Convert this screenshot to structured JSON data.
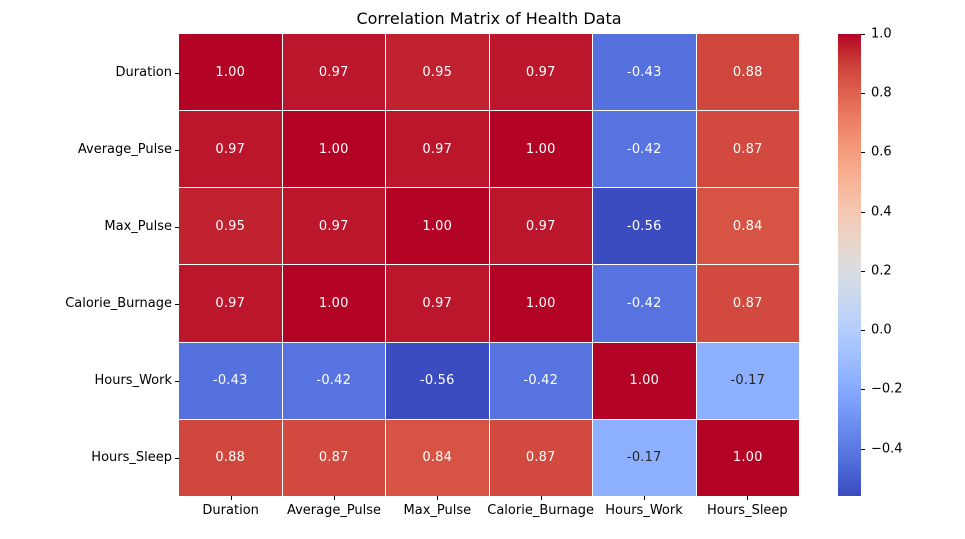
{
  "chart_data": {
    "type": "heatmap",
    "title": "Correlation Matrix of Health Data",
    "categories": [
      "Duration",
      "Average_Pulse",
      "Max_Pulse",
      "Calorie_Burnage",
      "Hours_Work",
      "Hours_Sleep"
    ],
    "matrix": [
      [
        1.0,
        0.97,
        0.95,
        0.97,
        -0.43,
        0.88
      ],
      [
        0.97,
        1.0,
        0.97,
        1.0,
        -0.42,
        0.87
      ],
      [
        0.95,
        0.97,
        1.0,
        0.97,
        -0.56,
        0.84
      ],
      [
        0.97,
        1.0,
        0.97,
        1.0,
        -0.42,
        0.87
      ],
      [
        -0.43,
        -0.42,
        -0.56,
        -0.42,
        1.0,
        -0.17
      ],
      [
        0.88,
        0.87,
        0.84,
        0.87,
        -0.17,
        1.0
      ]
    ],
    "value_decimals": 2,
    "colormap": "coolwarm",
    "vmin": -0.56,
    "vmax": 1.0,
    "colormap_stops": [
      "#3B4CC0",
      "#4D68D7",
      "#6282EA",
      "#779AF7",
      "#8DB0FE",
      "#A3C2FF",
      "#B8D0F9",
      "#CCD9EE",
      "#DDDDDD",
      "#ECD3C5",
      "#F5C4AD",
      "#F7B194",
      "#F49A7B",
      "#EC7F63",
      "#DE604D",
      "#CB3E38",
      "#B40426"
    ],
    "grid_line_color": "#ffffff",
    "annotation_text_colors": {
      "dark": "#262626",
      "light": "#ffffff"
    },
    "legend_position": "right",
    "colorbar_ticks": [
      {
        "value": 1.0,
        "label": "1.0"
      },
      {
        "value": 0.8,
        "label": "0.8"
      },
      {
        "value": 0.6,
        "label": "0.6"
      },
      {
        "value": 0.4,
        "label": "0.4"
      },
      {
        "value": 0.2,
        "label": "0.2"
      },
      {
        "value": 0.0,
        "label": "0.0"
      },
      {
        "value": -0.2,
        "label": "−0.2"
      },
      {
        "value": -0.4,
        "label": "−0.4"
      }
    ]
  }
}
